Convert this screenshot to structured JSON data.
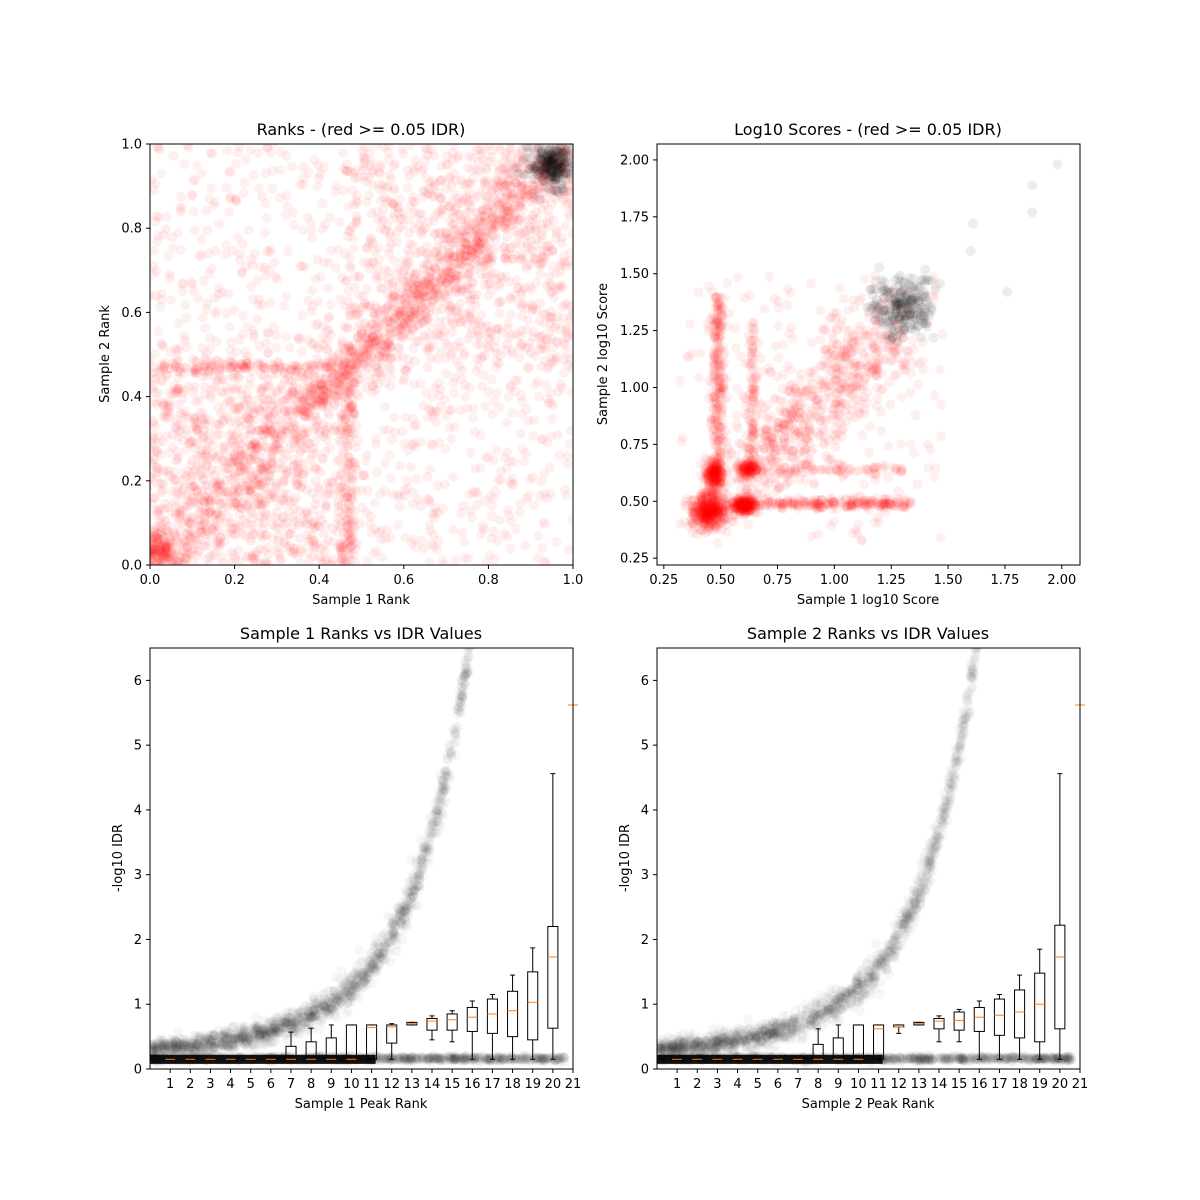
{
  "chart_data": [
    {
      "type": "scatter",
      "title": "Ranks - (red >= 0.05 IDR)",
      "xlabel": "Sample 1 Rank",
      "ylabel": "Sample 2 Rank",
      "xlim": [
        0.0,
        1.0
      ],
      "ylim": [
        0.0,
        1.0
      ],
      "xticks": [
        "0.0",
        "0.2",
        "0.4",
        "0.6",
        "0.8",
        "1.0"
      ],
      "yticks": [
        "0.0",
        "0.2",
        "0.4",
        "0.6",
        "0.8",
        "1.0"
      ],
      "colors": {
        "fail_idr": "#ff0000",
        "pass_idr": "#000000"
      },
      "series": [
        {
          "color": "#ff0000",
          "components": [
            {
              "kind": "diagonal_band",
              "x0": 0.0,
              "x1": 1.0,
              "spread": 0.045,
              "count": 900
            },
            {
              "kind": "diagonal_band",
              "x0": 0.35,
              "x1": 0.9,
              "spread": 0.02,
              "count": 350
            },
            {
              "kind": "uniform_box",
              "x0": 0.0,
              "x1": 1.0,
              "y0": 0.0,
              "y1": 1.0,
              "count": 1200
            },
            {
              "kind": "uniform_box",
              "x0": 0.0,
              "x1": 0.46,
              "y0": 0.0,
              "y1": 0.46,
              "count": 650
            },
            {
              "kind": "uniform_box",
              "x0": 0.46,
              "x1": 1.0,
              "y0": 0.46,
              "y1": 1.0,
              "count": 550
            },
            {
              "kind": "vertical_line",
              "x": 0.47,
              "y0": 0.0,
              "y1": 0.47,
              "spread": 0.008,
              "count": 140
            },
            {
              "kind": "horizontal_line",
              "y": 0.47,
              "x0": 0.0,
              "x1": 0.47,
              "spread": 0.008,
              "count": 140
            },
            {
              "kind": "cluster",
              "x": 0.02,
              "y": 0.03,
              "sx": 0.025,
              "sy": 0.025,
              "count": 150
            }
          ]
        },
        {
          "color": "#000000",
          "components": [
            {
              "kind": "cluster",
              "x": 0.95,
              "y": 0.95,
              "sx": 0.025,
              "sy": 0.025,
              "count": 260
            }
          ]
        }
      ]
    },
    {
      "type": "scatter",
      "title": "Log10 Scores - (red >= 0.05 IDR)",
      "xlabel": "Sample 1 log10 Score",
      "ylabel": "Sample 2 log10 Score",
      "xlim": [
        0.22,
        2.08
      ],
      "ylim": [
        0.22,
        2.07
      ],
      "xticks": [
        "0.25",
        "0.50",
        "0.75",
        "1.00",
        "1.25",
        "1.50",
        "1.75",
        "2.00"
      ],
      "yticks": [
        "0.25",
        "0.50",
        "0.75",
        "1.00",
        "1.25",
        "1.50",
        "1.75",
        "2.00"
      ],
      "colors": {
        "fail_idr": "#ff0000",
        "pass_idr": "#000000"
      },
      "series": [
        {
          "color": "#ff0000",
          "components": [
            {
              "kind": "cluster",
              "x": 0.45,
              "y": 0.46,
              "sx": 0.04,
              "sy": 0.04,
              "count": 420
            },
            {
              "kind": "cluster",
              "x": 0.6,
              "y": 0.48,
              "sx": 0.025,
              "sy": 0.02,
              "count": 200
            },
            {
              "kind": "cluster",
              "x": 0.47,
              "y": 0.62,
              "sx": 0.02,
              "sy": 0.03,
              "count": 180
            },
            {
              "kind": "cluster",
              "x": 0.62,
              "y": 0.64,
              "sx": 0.02,
              "sy": 0.02,
              "count": 100
            },
            {
              "kind": "vertical_line",
              "x": 0.49,
              "y0": 0.55,
              "y1": 1.4,
              "spread": 0.015,
              "count": 260
            },
            {
              "kind": "horizontal_line",
              "y": 0.49,
              "x0": 0.55,
              "x1": 1.35,
              "spread": 0.012,
              "count": 260
            },
            {
              "kind": "horizontal_line",
              "y": 0.64,
              "x0": 0.6,
              "x1": 1.3,
              "spread": 0.01,
              "count": 80
            },
            {
              "kind": "vertical_line",
              "x": 0.64,
              "y0": 0.6,
              "y1": 1.3,
              "spread": 0.01,
              "count": 80
            },
            {
              "kind": "diagonal_band",
              "x0": 0.65,
              "x1": 1.25,
              "spread": 0.1,
              "count": 650
            },
            {
              "kind": "uniform_box",
              "x0": 0.32,
              "x1": 1.5,
              "y0": 0.32,
              "y1": 1.5,
              "count": 160
            }
          ]
        },
        {
          "color": "#000000",
          "components": [
            {
              "kind": "cluster",
              "x": 1.3,
              "y": 1.35,
              "sx": 0.07,
              "sy": 0.07,
              "count": 230
            },
            {
              "kind": "points",
              "xs": [
                1.87,
                1.98,
                1.87,
                1.61,
                1.6,
                1.76
              ],
              "ys": [
                1.89,
                1.98,
                1.77,
                1.72,
                1.6,
                1.42
              ]
            }
          ]
        }
      ]
    },
    {
      "type": "box",
      "title": "Sample 1 Ranks vs IDR Values",
      "xlabel": "Sample 1 Peak Rank",
      "ylabel": "-log10 IDR",
      "ylim": [
        0,
        6.5
      ],
      "xlim": [
        0,
        21
      ],
      "xticks": [
        "1",
        "2",
        "3",
        "4",
        "5",
        "6",
        "7",
        "8",
        "9",
        "10",
        "11",
        "12",
        "13",
        "14",
        "15",
        "16",
        "17",
        "18",
        "19",
        "20",
        "21"
      ],
      "yticks": [
        "0",
        "1",
        "2",
        "3",
        "4",
        "5",
        "6"
      ],
      "median_color": "#ff7f0e",
      "boxes": [
        {
          "x": 1,
          "q1": 0.14,
          "median": 0.15,
          "q3": 0.16
        },
        {
          "x": 2,
          "q1": 0.14,
          "median": 0.15,
          "q3": 0.16
        },
        {
          "x": 3,
          "q1": 0.14,
          "median": 0.15,
          "q3": 0.16
        },
        {
          "x": 4,
          "q1": 0.14,
          "median": 0.15,
          "q3": 0.16
        },
        {
          "x": 5,
          "q1": 0.14,
          "median": 0.15,
          "q3": 0.16
        },
        {
          "x": 6,
          "q1": 0.14,
          "median": 0.15,
          "q3": 0.16
        },
        {
          "x": 7,
          "q1": 0.15,
          "median": 0.15,
          "q3": 0.35,
          "whislo": 0.15,
          "whishi": 0.57
        },
        {
          "x": 8,
          "q1": 0.15,
          "median": 0.15,
          "q3": 0.42,
          "whislo": 0.15,
          "whishi": 0.63
        },
        {
          "x": 9,
          "q1": 0.15,
          "median": 0.15,
          "q3": 0.48,
          "whislo": 0.15,
          "whishi": 0.68
        },
        {
          "x": 10,
          "q1": 0.15,
          "median": 0.15,
          "q3": 0.68,
          "whislo": 0.15,
          "whishi": 0.68
        },
        {
          "x": 11,
          "q1": 0.15,
          "median": 0.64,
          "q3": 0.68,
          "whislo": 0.15,
          "whishi": 0.68
        },
        {
          "x": 12,
          "q1": 0.4,
          "median": 0.65,
          "q3": 0.68,
          "whislo": 0.15,
          "whishi": 0.7
        },
        {
          "x": 13,
          "q1": 0.68,
          "median": 0.7,
          "q3": 0.72,
          "whislo": 0.68,
          "whishi": 0.72
        },
        {
          "x": 14,
          "q1": 0.6,
          "median": 0.74,
          "q3": 0.78,
          "whislo": 0.45,
          "whishi": 0.82
        },
        {
          "x": 15,
          "q1": 0.6,
          "median": 0.76,
          "q3": 0.85,
          "whislo": 0.42,
          "whishi": 0.9
        },
        {
          "x": 16,
          "q1": 0.58,
          "median": 0.8,
          "q3": 0.95,
          "whislo": 0.15,
          "whishi": 1.05
        },
        {
          "x": 17,
          "q1": 0.55,
          "median": 0.85,
          "q3": 1.08,
          "whislo": 0.15,
          "whishi": 1.15
        },
        {
          "x": 18,
          "q1": 0.5,
          "median": 0.9,
          "q3": 1.2,
          "whislo": 0.15,
          "whishi": 1.45
        },
        {
          "x": 19,
          "q1": 0.45,
          "median": 1.03,
          "q3": 1.5,
          "whislo": 0.15,
          "whishi": 1.87
        },
        {
          "x": 20,
          "q1": 0.63,
          "median": 1.73,
          "q3": 2.2,
          "whislo": 0.15,
          "whishi": 4.56
        },
        {
          "x": 21,
          "median": 5.62
        }
      ],
      "scatter_color": "#000000"
    },
    {
      "type": "box",
      "title": "Sample 2 Ranks vs IDR Values",
      "xlabel": "Sample 2 Peak Rank",
      "ylabel": "-log10 IDR",
      "ylim": [
        0,
        6.5
      ],
      "xlim": [
        0,
        21
      ],
      "xticks": [
        "1",
        "2",
        "3",
        "4",
        "5",
        "6",
        "7",
        "8",
        "9",
        "10",
        "11",
        "12",
        "13",
        "14",
        "15",
        "16",
        "17",
        "18",
        "19",
        "20",
        "21"
      ],
      "yticks": [
        "0",
        "1",
        "2",
        "3",
        "4",
        "5",
        "6"
      ],
      "median_color": "#ff7f0e",
      "boxes": [
        {
          "x": 1,
          "q1": 0.14,
          "median": 0.15,
          "q3": 0.16
        },
        {
          "x": 2,
          "q1": 0.14,
          "median": 0.15,
          "q3": 0.16
        },
        {
          "x": 3,
          "q1": 0.14,
          "median": 0.15,
          "q3": 0.16
        },
        {
          "x": 4,
          "q1": 0.14,
          "median": 0.15,
          "q3": 0.16
        },
        {
          "x": 5,
          "q1": 0.14,
          "median": 0.15,
          "q3": 0.16
        },
        {
          "x": 6,
          "q1": 0.14,
          "median": 0.15,
          "q3": 0.16
        },
        {
          "x": 7,
          "q1": 0.14,
          "median": 0.15,
          "q3": 0.16
        },
        {
          "x": 8,
          "q1": 0.15,
          "median": 0.15,
          "q3": 0.38,
          "whislo": 0.15,
          "whishi": 0.62
        },
        {
          "x": 9,
          "q1": 0.15,
          "median": 0.15,
          "q3": 0.48,
          "whislo": 0.15,
          "whishi": 0.68
        },
        {
          "x": 10,
          "q1": 0.15,
          "median": 0.15,
          "q3": 0.68,
          "whislo": 0.15,
          "whishi": 0.68
        },
        {
          "x": 11,
          "q1": 0.15,
          "median": 0.62,
          "q3": 0.68,
          "whislo": 0.15,
          "whishi": 0.68
        },
        {
          "x": 12,
          "q1": 0.65,
          "median": 0.65,
          "q3": 0.68,
          "whislo": 0.55,
          "whishi": 0.68
        },
        {
          "x": 13,
          "q1": 0.68,
          "median": 0.7,
          "q3": 0.72,
          "whislo": 0.68,
          "whishi": 0.72
        },
        {
          "x": 14,
          "q1": 0.62,
          "median": 0.74,
          "q3": 0.78,
          "whislo": 0.42,
          "whishi": 0.82
        },
        {
          "x": 15,
          "q1": 0.6,
          "median": 0.75,
          "q3": 0.88,
          "whislo": 0.42,
          "whishi": 0.92
        },
        {
          "x": 16,
          "q1": 0.58,
          "median": 0.8,
          "q3": 0.95,
          "whislo": 0.15,
          "whishi": 1.05
        },
        {
          "x": 17,
          "q1": 0.52,
          "median": 0.83,
          "q3": 1.08,
          "whislo": 0.15,
          "whishi": 1.15
        },
        {
          "x": 18,
          "q1": 0.48,
          "median": 0.88,
          "q3": 1.22,
          "whislo": 0.15,
          "whishi": 1.45
        },
        {
          "x": 19,
          "q1": 0.42,
          "median": 1.0,
          "q3": 1.48,
          "whislo": 0.15,
          "whishi": 1.85
        },
        {
          "x": 20,
          "q1": 0.62,
          "median": 1.73,
          "q3": 2.22,
          "whislo": 0.15,
          "whishi": 4.56
        },
        {
          "x": 21,
          "median": 5.62
        }
      ],
      "scatter_color": "#000000"
    }
  ]
}
